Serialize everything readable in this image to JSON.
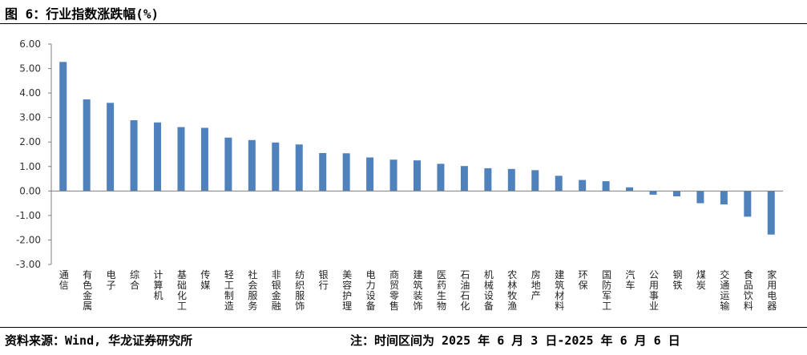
{
  "figure": {
    "title": "图 6：行业指数涨跌幅(%)",
    "source": "资料来源：Wind, 华龙证券研究所",
    "note": "注：时间区间为 2025 年 6 月 3 日-2025 年 6 月 6 日"
  },
  "colors": {
    "bar": "#4f81bd",
    "axis": "#7f7f7f"
  },
  "chart_data": {
    "type": "bar",
    "title": "行业指数涨跌幅(%)",
    "xlabel": "",
    "ylabel": "",
    "ylim": [
      -3,
      6
    ],
    "yticks": [
      {
        "value": 6,
        "label": "6.00"
      },
      {
        "value": 5,
        "label": "5.00"
      },
      {
        "value": 4,
        "label": "4.00"
      },
      {
        "value": 3,
        "label": "3.00"
      },
      {
        "value": 2,
        "label": "2.00"
      },
      {
        "value": 1,
        "label": "1.00"
      },
      {
        "value": 0,
        "label": "0.00"
      },
      {
        "value": -1,
        "label": "-1.00"
      },
      {
        "value": -2,
        "label": "-2.00"
      },
      {
        "value": -3,
        "label": "-3.00"
      }
    ],
    "grid": false,
    "legend": "none",
    "categories": [
      "通信",
      "有色金属",
      "电子",
      "综合",
      "计算机",
      "基础化工",
      "传媒",
      "轻工制造",
      "社会服务",
      "非银金融",
      "纺织服饰",
      "银行",
      "美容护理",
      "电力设备",
      "商贸零售",
      "建筑装饰",
      "医药生物",
      "石油石化",
      "机械设备",
      "农林牧渔",
      "房地产",
      "建筑材料",
      "环保",
      "国防军工",
      "汽车",
      "公用事业",
      "钢铁",
      "煤炭",
      "交通运输",
      "食品饮料",
      "家用电器"
    ],
    "values": [
      5.27,
      3.74,
      3.6,
      2.89,
      2.8,
      2.61,
      2.58,
      2.18,
      2.08,
      1.98,
      1.9,
      1.55,
      1.54,
      1.37,
      1.28,
      1.25,
      1.11,
      1.02,
      0.93,
      0.9,
      0.85,
      0.62,
      0.45,
      0.4,
      0.15,
      -0.15,
      -0.22,
      -0.5,
      -0.55,
      -1.05,
      -1.78
    ]
  }
}
